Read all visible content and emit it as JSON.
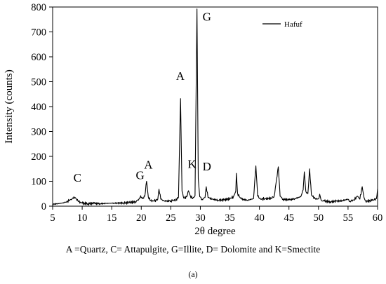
{
  "chart_data": {
    "type": "line",
    "xlabel": "2θ degree",
    "ylabel": "Intensity (counts)",
    "xlim": [
      5,
      60
    ],
    "ylim": [
      0,
      800
    ],
    "xticks": [
      5,
      10,
      15,
      20,
      25,
      30,
      35,
      40,
      45,
      50,
      55,
      60
    ],
    "yticks": [
      0,
      100,
      200,
      300,
      400,
      500,
      600,
      700,
      800
    ],
    "grid": false,
    "legend_position": "top-right",
    "series": [
      {
        "name": "Hafuf",
        "color": "#000000",
        "points": [
          [
            5.0,
            8
          ],
          [
            6.0,
            10
          ],
          [
            7.0,
            14
          ],
          [
            7.8,
            22
          ],
          [
            8.3,
            30
          ],
          [
            8.6,
            38
          ],
          [
            8.9,
            32
          ],
          [
            9.4,
            18
          ],
          [
            10.0,
            12
          ],
          [
            11.0,
            10
          ],
          [
            12.0,
            11
          ],
          [
            13.0,
            10
          ],
          [
            14.0,
            11
          ],
          [
            15.0,
            12
          ],
          [
            16.0,
            12
          ],
          [
            17.0,
            13
          ],
          [
            18.0,
            14
          ],
          [
            19.0,
            18
          ],
          [
            19.6,
            28
          ],
          [
            19.9,
            42
          ],
          [
            20.2,
            30
          ],
          [
            20.6,
            40
          ],
          [
            20.9,
            100
          ],
          [
            21.2,
            36
          ],
          [
            21.6,
            22
          ],
          [
            22.2,
            20
          ],
          [
            22.8,
            28
          ],
          [
            23.0,
            68
          ],
          [
            23.3,
            28
          ],
          [
            24.0,
            20
          ],
          [
            25.0,
            22
          ],
          [
            25.8,
            24
          ],
          [
            26.3,
            35
          ],
          [
            26.65,
            432
          ],
          [
            26.9,
            60
          ],
          [
            27.2,
            32
          ],
          [
            27.7,
            38
          ],
          [
            28.0,
            62
          ],
          [
            28.3,
            42
          ],
          [
            28.7,
            30
          ],
          [
            29.1,
            42
          ],
          [
            29.43,
            792
          ],
          [
            29.65,
            110
          ],
          [
            29.9,
            38
          ],
          [
            30.3,
            28
          ],
          [
            30.8,
            35
          ],
          [
            31.0,
            78
          ],
          [
            31.3,
            35
          ],
          [
            32.0,
            28
          ],
          [
            33.0,
            24
          ],
          [
            34.0,
            25
          ],
          [
            35.0,
            30
          ],
          [
            35.6,
            38
          ],
          [
            36.0,
            60
          ],
          [
            36.1,
            132
          ],
          [
            36.3,
            52
          ],
          [
            36.6,
            38
          ],
          [
            37.0,
            28
          ],
          [
            38.0,
            24
          ],
          [
            39.0,
            30
          ],
          [
            39.4,
            162
          ],
          [
            39.7,
            40
          ],
          [
            40.2,
            28
          ],
          [
            41.0,
            30
          ],
          [
            42.0,
            32
          ],
          [
            42.5,
            40
          ],
          [
            43.2,
            158
          ],
          [
            43.5,
            40
          ],
          [
            44.0,
            28
          ],
          [
            45.0,
            25
          ],
          [
            46.0,
            30
          ],
          [
            47.0,
            38
          ],
          [
            47.4,
            65
          ],
          [
            47.6,
            138
          ],
          [
            47.85,
            60
          ],
          [
            48.2,
            50
          ],
          [
            48.5,
            150
          ],
          [
            48.8,
            45
          ],
          [
            49.5,
            28
          ],
          [
            50.0,
            30
          ],
          [
            50.2,
            48
          ],
          [
            50.5,
            22
          ],
          [
            51.0,
            20
          ],
          [
            52.0,
            18
          ],
          [
            53.0,
            20
          ],
          [
            54.0,
            22
          ],
          [
            55.0,
            28
          ],
          [
            55.3,
            20
          ],
          [
            56.0,
            25
          ],
          [
            56.6,
            40
          ],
          [
            57.0,
            28
          ],
          [
            57.4,
            78
          ],
          [
            57.7,
            35
          ],
          [
            58.0,
            20
          ],
          [
            59.0,
            22
          ],
          [
            59.8,
            30
          ],
          [
            60.0,
            70
          ]
        ]
      }
    ],
    "annotations": [
      {
        "text": "C",
        "x": 9.2,
        "y": 98
      },
      {
        "text": "G",
        "x": 19.8,
        "y": 109
      },
      {
        "text": "A",
        "x": 21.2,
        "y": 151
      },
      {
        "text": "A",
        "x": 26.6,
        "y": 507
      },
      {
        "text": "K",
        "x": 28.6,
        "y": 154
      },
      {
        "text": "G",
        "x": 31.1,
        "y": 745
      },
      {
        "text": "D",
        "x": 31.1,
        "y": 143
      }
    ]
  },
  "caption": "A =Quartz, C= Attapulgite, G=Illite, D= Dolomite and K=Smectite",
  "panel_label": "(a)"
}
